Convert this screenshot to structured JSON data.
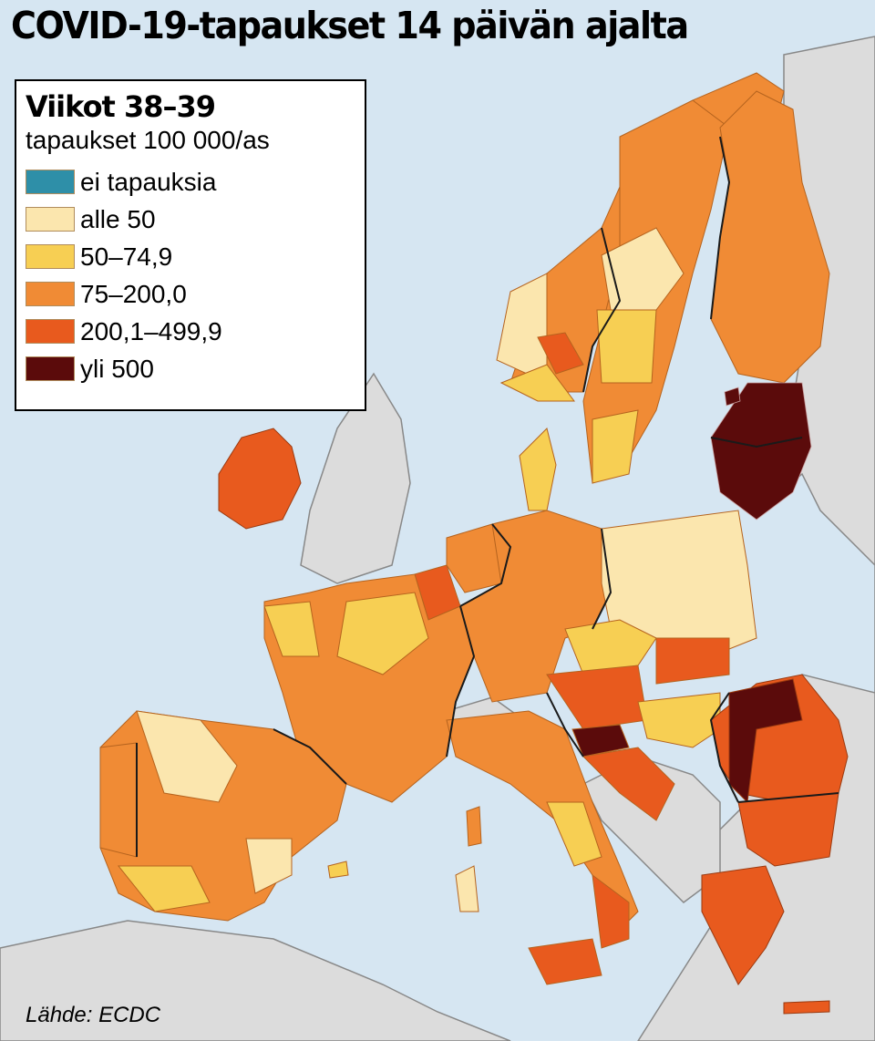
{
  "title": "COVID-19-tapaukset 14 päivän ajalta",
  "legend": {
    "heading": "Viikot 38–39",
    "subheading": "tapaukset 100 000/as",
    "items": [
      {
        "label": "ei tapauksia",
        "color": "#2e8fa8"
      },
      {
        "label": "alle 50",
        "color": "#fbe6ae"
      },
      {
        "label": "50–74,9",
        "color": "#f7cf53"
      },
      {
        "label": "75–200,0",
        "color": "#f08b35"
      },
      {
        "label": "200,1–499,9",
        "color": "#e85a1e"
      },
      {
        "label": "yli 500",
        "color": "#5b0b0b"
      }
    ]
  },
  "colors": {
    "sea": "#d6e6f2",
    "no_data_land": "#dcdcdc",
    "borders": "#1a1a1a"
  },
  "source": "Lähde: ECDC"
}
